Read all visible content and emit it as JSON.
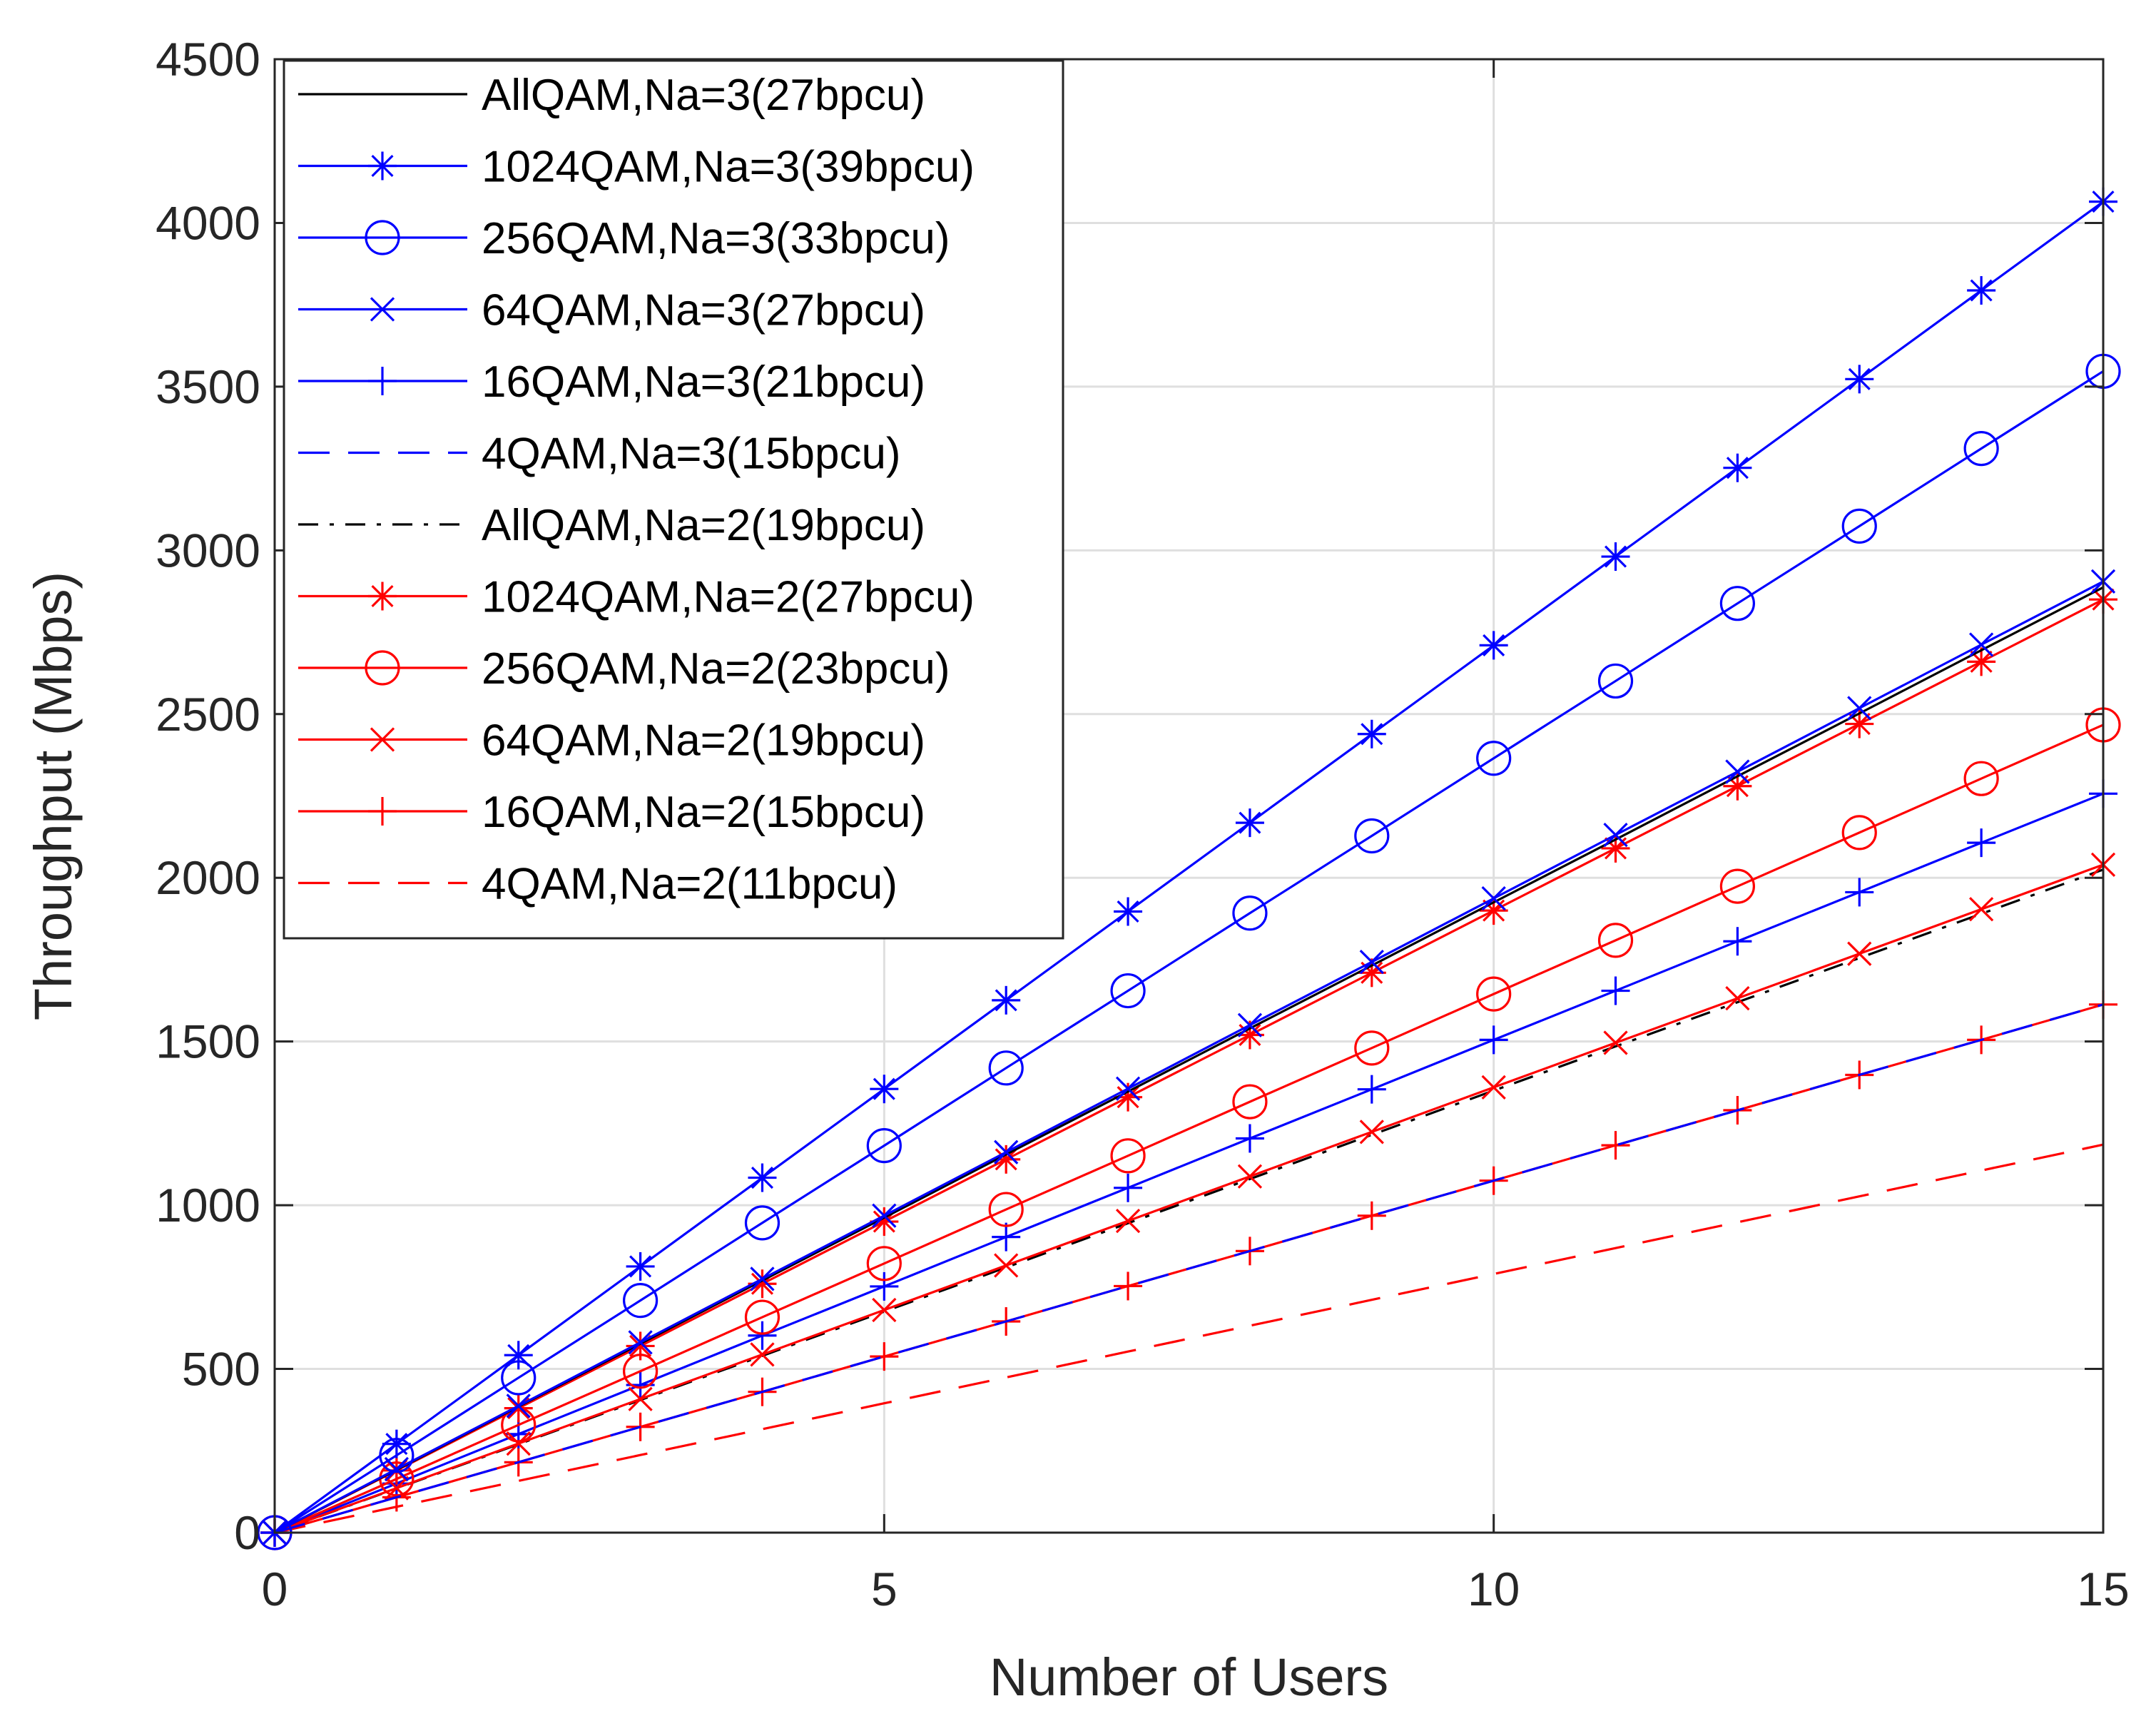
{
  "chart_data": {
    "type": "line",
    "title": "",
    "xlabel": "Number of Users",
    "ylabel": "Throughput (Mbps)",
    "xlim": [
      0,
      15
    ],
    "ylim": [
      0,
      4500
    ],
    "xticks": [
      "0",
      "5",
      "10",
      "15"
    ],
    "yticks": [
      "0",
      "500",
      "1000",
      "1500",
      "2000",
      "2500",
      "3000",
      "3500",
      "4000",
      "4500"
    ],
    "grid": true,
    "legend_position": "top-left",
    "x": [
      0,
      1,
      2,
      3,
      4,
      5,
      6,
      7,
      8,
      9,
      10,
      11,
      12,
      13,
      14,
      15
    ],
    "series": [
      {
        "name": "AllQAM,Na=3(27bpcu)",
        "color": "#000000",
        "dash": "solid",
        "marker": "none",
        "values": [
          0,
          192,
          385,
          577,
          770,
          962,
          1155,
          1347,
          1540,
          1732,
          1925,
          2117,
          2310,
          2502,
          2695,
          2887
        ]
      },
      {
        "name": "1024QAM,Na=3(39bpcu)",
        "color": "#0000ff",
        "dash": "solid",
        "marker": "star",
        "values": [
          0,
          271,
          542,
          813,
          1084,
          1355,
          1626,
          1897,
          2168,
          2439,
          2710,
          2981,
          3252,
          3523,
          3794,
          4065
        ]
      },
      {
        "name": "256QAM,Na=3(33bpcu)",
        "color": "#0000ff",
        "dash": "solid",
        "marker": "circle",
        "values": [
          0,
          236,
          473,
          709,
          946,
          1182,
          1419,
          1655,
          1892,
          2128,
          2365,
          2601,
          2838,
          3074,
          3311,
          3547
        ]
      },
      {
        "name": "64QAM,Na=3(27bpcu)",
        "color": "#0000ff",
        "dash": "solid",
        "marker": "x",
        "values": [
          0,
          194,
          387,
          581,
          775,
          968,
          1162,
          1356,
          1550,
          1743,
          1937,
          2131,
          2324,
          2518,
          2712,
          2905
        ]
      },
      {
        "name": "16QAM,Na=3(21bpcu)",
        "color": "#0000ff",
        "dash": "solid",
        "marker": "plus",
        "values": [
          0,
          150,
          301,
          451,
          602,
          752,
          903,
          1053,
          1204,
          1354,
          1505,
          1655,
          1806,
          1956,
          2107,
          2257
        ]
      },
      {
        "name": "4QAM,Na=3(15bpcu)",
        "color": "#0000ff",
        "dash": "dashed",
        "marker": "none",
        "values": [
          0,
          108,
          215,
          323,
          430,
          538,
          645,
          753,
          860,
          968,
          1075,
          1183,
          1290,
          1398,
          1505,
          1613
        ]
      },
      {
        "name": "AllQAM,Na=2(19bpcu)",
        "color": "#000000",
        "dash": "dashdot",
        "marker": "none",
        "values": [
          0,
          135,
          270,
          405,
          540,
          675,
          810,
          945,
          1080,
          1215,
          1350,
          1485,
          1620,
          1755,
          1890,
          2025
        ]
      },
      {
        "name": "1024QAM,Na=2(27bpcu)",
        "color": "#ff0000",
        "dash": "solid",
        "marker": "star",
        "values": [
          0,
          190,
          380,
          570,
          760,
          950,
          1140,
          1330,
          1520,
          1710,
          1900,
          2090,
          2280,
          2470,
          2660,
          2850
        ]
      },
      {
        "name": "256QAM,Na=2(23bpcu)",
        "color": "#ff0000",
        "dash": "solid",
        "marker": "circle",
        "values": [
          0,
          164,
          329,
          493,
          658,
          822,
          987,
          1151,
          1316,
          1480,
          1645,
          1809,
          1974,
          2138,
          2303,
          2467
        ]
      },
      {
        "name": "64QAM,Na=2(19bpcu)",
        "color": "#ff0000",
        "dash": "solid",
        "marker": "x",
        "values": [
          0,
          136,
          272,
          408,
          544,
          680,
          816,
          952,
          1088,
          1224,
          1360,
          1496,
          1632,
          1768,
          1904,
          2040
        ]
      },
      {
        "name": "16QAM,Na=2(15bpcu)",
        "color": "#ff0000",
        "dash": "solid",
        "marker": "plus",
        "values": [
          0,
          108,
          215,
          323,
          430,
          538,
          645,
          753,
          860,
          968,
          1075,
          1183,
          1290,
          1398,
          1505,
          1613
        ]
      },
      {
        "name": "4QAM,Na=2(11bpcu)",
        "color": "#ff0000",
        "dash": "dashed",
        "marker": "none",
        "values": [
          0,
          79,
          158,
          237,
          316,
          395,
          474,
          553,
          632,
          711,
          790,
          869,
          948,
          1027,
          1106,
          1185
        ]
      }
    ]
  }
}
